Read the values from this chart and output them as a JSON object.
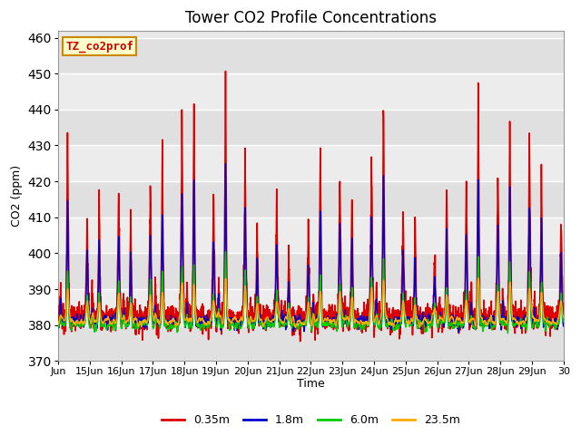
{
  "title": "Tower CO2 Profile Concentrations",
  "xlabel": "Time",
  "ylabel": "CO2 (ppm)",
  "ylim": [
    370,
    462
  ],
  "yticks": [
    370,
    380,
    390,
    400,
    410,
    420,
    430,
    440,
    450,
    460
  ],
  "background_color": "#ffffff",
  "plot_bg_light": "#e8e8e8",
  "plot_bg_dark": "#d0d0d0",
  "grid_color": "#ffffff",
  "legend_label": "TZ_co2prof",
  "legend_bg": "#ffffcc",
  "legend_border": "#cc8800",
  "series": [
    {
      "label": "0.35m",
      "color": "#dd0000",
      "lw": 1.2
    },
    {
      "label": "1.8m",
      "color": "#0000cc",
      "lw": 1.0
    },
    {
      "label": "6.0m",
      "color": "#00cc00",
      "lw": 1.0
    },
    {
      "label": "23.5m",
      "color": "#ffaa00",
      "lw": 1.0
    }
  ],
  "date_start": 14.0,
  "date_end": 30.0,
  "xtick_positions": [
    14,
    15,
    16,
    17,
    18,
    19,
    20,
    21,
    22,
    23,
    24,
    25,
    26,
    27,
    28,
    29,
    30
  ],
  "xtick_labels": [
    "Jun",
    "15Jun",
    "16Jun",
    "17Jun",
    "18Jun",
    "19Jun",
    "20Jun",
    "21Jun",
    "22Jun",
    "23Jun",
    "24Jun",
    "25Jun",
    "26Jun",
    "27Jun",
    "28Jun",
    "29Jun",
    "30"
  ]
}
